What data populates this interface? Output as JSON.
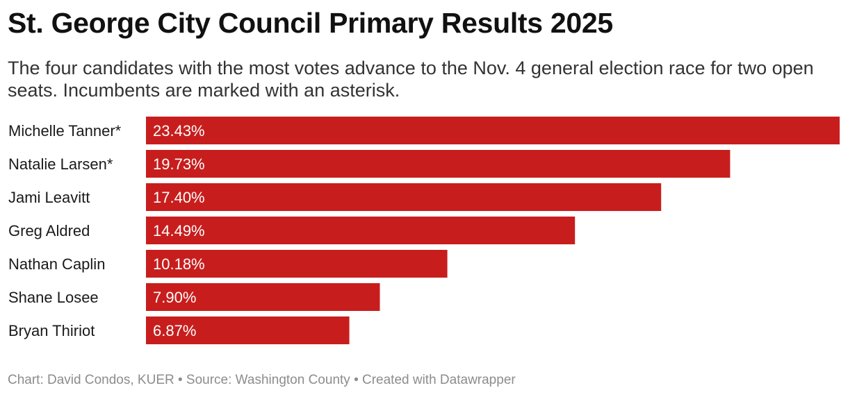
{
  "header": {
    "title": "St. George City Council Primary Results 2025",
    "subtitle": "The four candidates with the most votes advance to the Nov. 4 general election race for two open seats. Incumbents are marked with an asterisk."
  },
  "colors": {
    "bar": "#c71e1d"
  },
  "chart_data": {
    "type": "bar",
    "orientation": "horizontal",
    "title": "St. George City Council Primary Results 2025",
    "categories": [
      "Michelle Tanner*",
      "Natalie Larsen*",
      "Jami Leavitt",
      "Greg Aldred",
      "Nathan Caplin",
      "Shane Losee",
      "Bryan Thiriot"
    ],
    "values": [
      23.43,
      19.73,
      17.4,
      14.49,
      10.18,
      7.9,
      6.87
    ],
    "value_labels": [
      "23.43%",
      "19.73%",
      "17.40%",
      "14.49%",
      "10.18%",
      "7.90%",
      "6.87%"
    ],
    "unit": "%",
    "xlim": [
      0,
      23.43
    ],
    "xlabel": "",
    "ylabel": ""
  },
  "footer": {
    "credit": "Chart: David Condos, KUER • Source: Washington County • Created with Datawrapper"
  }
}
